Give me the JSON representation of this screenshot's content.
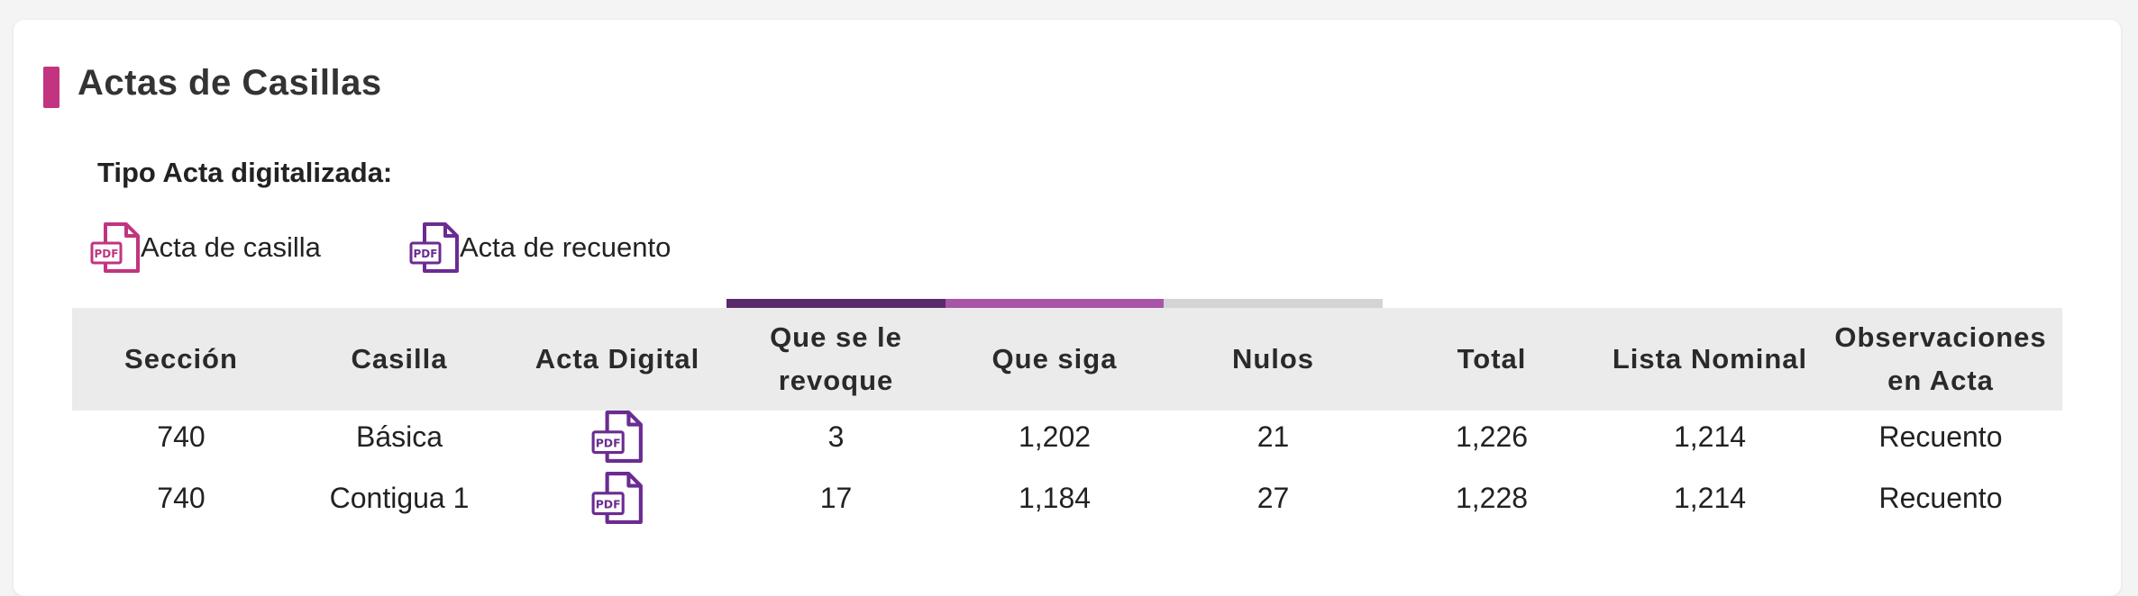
{
  "section": {
    "title": "Actas de Casillas",
    "subtitle": "Tipo Acta digitalizada:",
    "accent_color": "#c2347f"
  },
  "legend": [
    {
      "label": "Acta de casilla",
      "icon": "pdf-file-icon",
      "color": "#c2347f"
    },
    {
      "label": "Acta de recuento",
      "icon": "pdf-file-icon",
      "color": "#6a2c91"
    }
  ],
  "header_bar_colors": [
    "#5a2a6b",
    "#a855a8",
    "#d4d4d4"
  ],
  "table": {
    "headers": [
      "Sección",
      "Casilla",
      "Acta Digital",
      "Que se le revoque",
      "Que siga",
      "Nulos",
      "Total",
      "Lista Nominal",
      "Observaciones en Acta"
    ],
    "rows": [
      {
        "seccion": "740",
        "casilla": "Básica",
        "acta_icon": "pdf-file-icon",
        "revoque": "3",
        "siga": "1,202",
        "nulos": "21",
        "total": "1,226",
        "lista_nominal": "1,214",
        "observaciones": "Recuento"
      },
      {
        "seccion": "740",
        "casilla": "Contigua 1",
        "acta_icon": "pdf-file-icon",
        "revoque": "17",
        "siga": "1,184",
        "nulos": "27",
        "total": "1,228",
        "lista_nominal": "1,214",
        "observaciones": "Recuento"
      }
    ],
    "pdf_icon_color": "#6a2c91"
  }
}
